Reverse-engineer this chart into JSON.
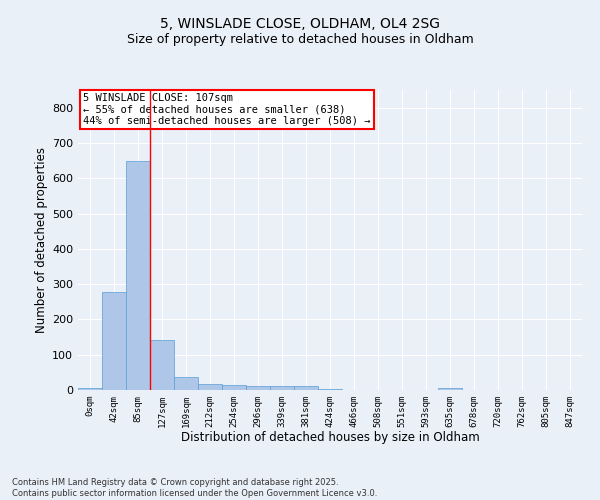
{
  "title_line1": "5, WINSLADE CLOSE, OLDHAM, OL4 2SG",
  "title_line2": "Size of property relative to detached houses in Oldham",
  "xlabel": "Distribution of detached houses by size in Oldham",
  "ylabel": "Number of detached properties",
  "footer_line1": "Contains HM Land Registry data © Crown copyright and database right 2025.",
  "footer_line2": "Contains public sector information licensed under the Open Government Licence v3.0.",
  "bar_labels": [
    "0sqm",
    "42sqm",
    "85sqm",
    "127sqm",
    "169sqm",
    "212sqm",
    "254sqm",
    "296sqm",
    "339sqm",
    "381sqm",
    "424sqm",
    "466sqm",
    "508sqm",
    "551sqm",
    "593sqm",
    "635sqm",
    "678sqm",
    "720sqm",
    "762sqm",
    "805sqm",
    "847sqm"
  ],
  "bar_values": [
    7,
    278,
    648,
    142,
    38,
    18,
    13,
    11,
    11,
    10,
    3,
    0,
    0,
    0,
    0,
    5,
    0,
    0,
    0,
    0,
    0
  ],
  "bar_color": "#aec6e8",
  "bar_edge_color": "#5a9fd4",
  "vline_x": 2.5,
  "vline_color": "red",
  "annotation_text": "5 WINSLADE CLOSE: 107sqm\n← 55% of detached houses are smaller (638)\n44% of semi-detached houses are larger (508) →",
  "annotation_box_color": "red",
  "annotation_text_color": "black",
  "ylim": [
    0,
    850
  ],
  "yticks": [
    0,
    100,
    200,
    300,
    400,
    500,
    600,
    700,
    800
  ],
  "background_color": "#eaf0f8",
  "plot_background_color": "#eaf0f8",
  "grid_color": "white",
  "title_fontsize": 10,
  "subtitle_fontsize": 9
}
